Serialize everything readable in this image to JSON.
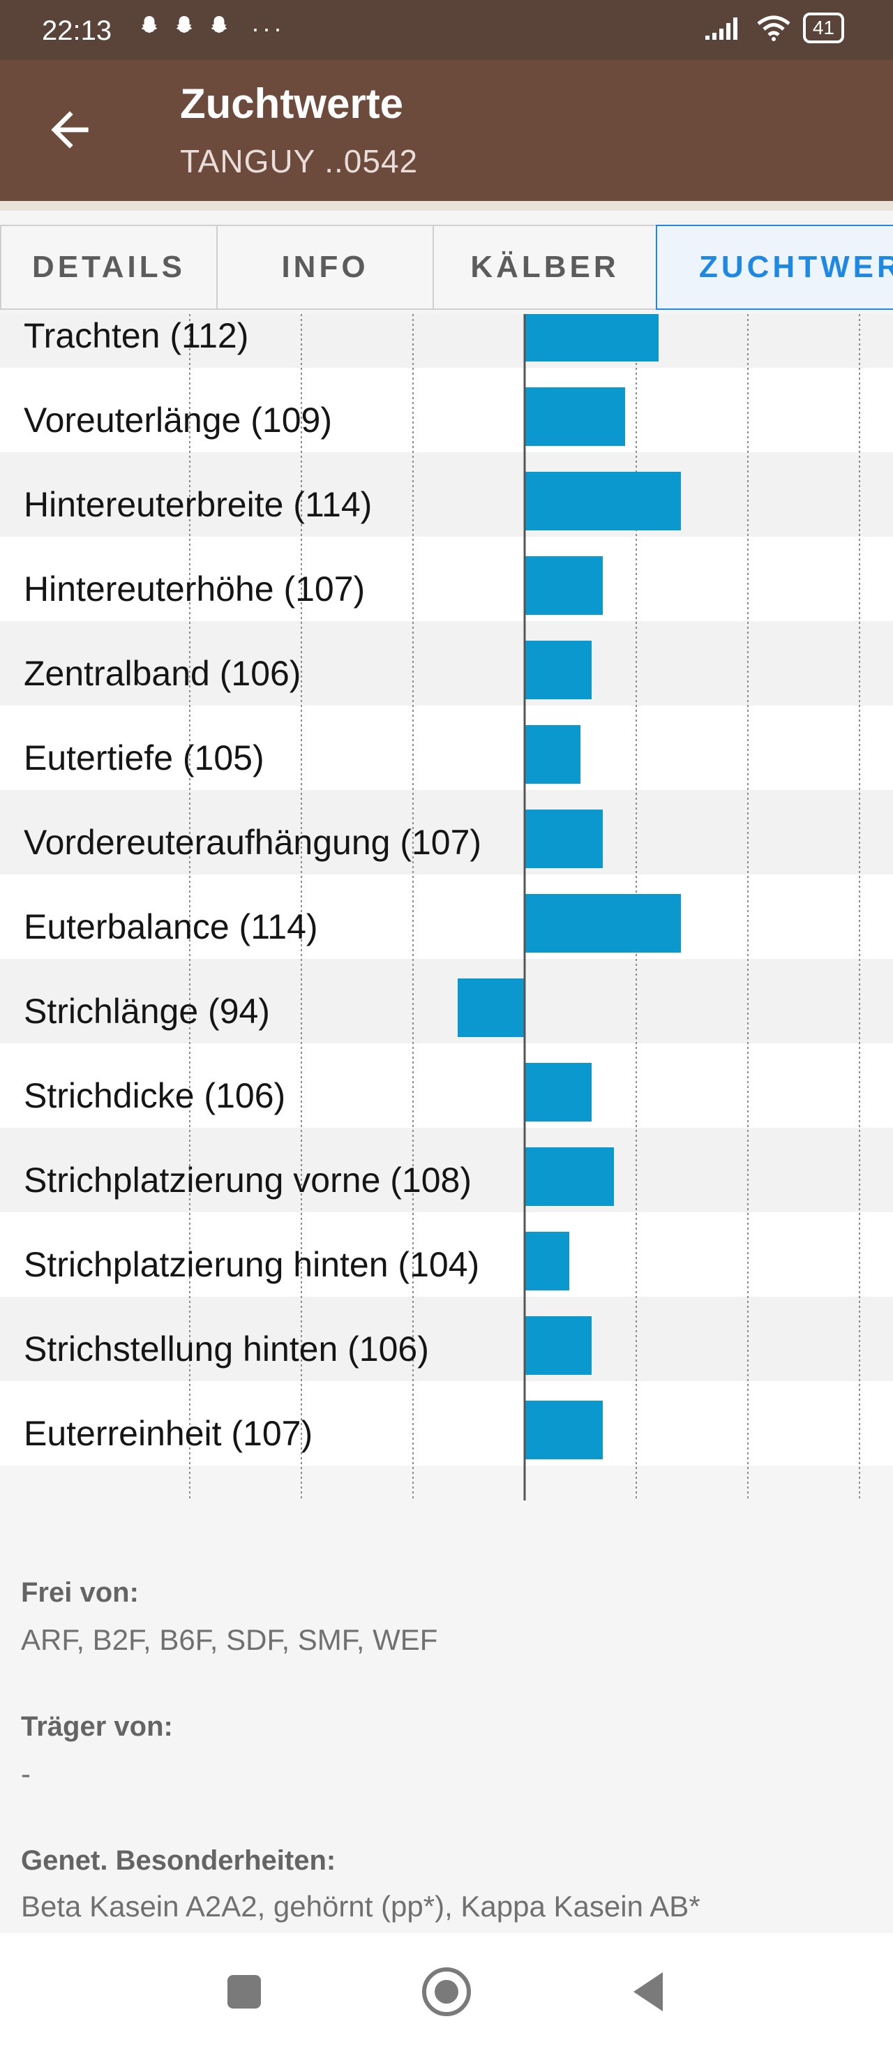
{
  "status": {
    "time": "22:13",
    "dots": "···",
    "battery": "41"
  },
  "appbar": {
    "title": "Zuchtwerte",
    "subtitle": "TANGUY ..0542"
  },
  "tabs": [
    "DETAILS",
    "INFO",
    "KÄLBER",
    "ZUCHTWERTE"
  ],
  "chart_data": {
    "type": "bar",
    "orientation": "horizontal",
    "baseline": 100,
    "categories": [
      "Trachten (112)",
      "Voreuterlänge (109)",
      "Hintereuterbreite (114)",
      "Hintereuterhöhe (107)",
      "Zentralband (106)",
      "Eutertiefe (105)",
      "Vordereuteraufhängung (107)",
      "Euterbalance (114)",
      "Strichlänge (94)",
      "Strichdicke (106)",
      "Strichplatzierung vorne (108)",
      "Strichplatzierung hinten (104)",
      "Strichstellung hinten (106)",
      "Euterreinheit (107)"
    ],
    "values": [
      112,
      109,
      114,
      107,
      106,
      105,
      107,
      114,
      94,
      106,
      108,
      104,
      106,
      107
    ],
    "color": "#0a98cf"
  },
  "info": {
    "frei_label": "Frei von:",
    "frei_value": "ARF, B2F, B6F, SDF, SMF, WEF",
    "traeger_label": "Träger von:",
    "traeger_value": "-",
    "genet_label": "Genet. Besonderheiten:",
    "genet_value": "Beta Kasein A2A2, gehörnt (pp*), Kappa Kasein AB*"
  }
}
